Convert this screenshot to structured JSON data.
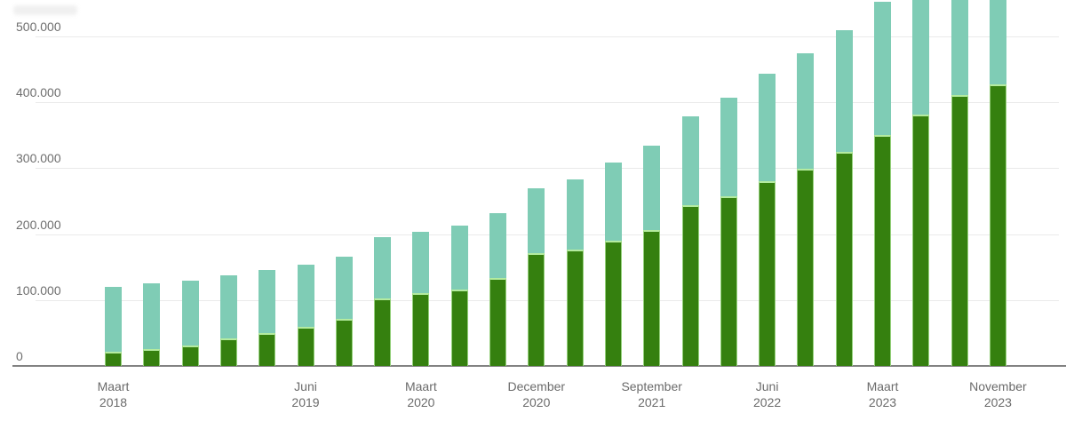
{
  "chart_data": {
    "type": "bar",
    "stacked": true,
    "orientation": "vertical",
    "bar_count": 24,
    "title": "",
    "xlabel": "",
    "ylabel": "",
    "grid": "horizontal",
    "legend": null,
    "cropped_top": true,
    "visible_y_max": 556000,
    "series": [
      {
        "name": "dark-green-bottom-segment",
        "color": "#35800f",
        "values": [
          22000,
          26000,
          31000,
          42000,
          50000,
          59000,
          72000,
          102000,
          111000,
          116000,
          134000,
          171000,
          176000,
          190000,
          206000,
          244000,
          258000,
          280000,
          299000,
          325000,
          350000,
          381000,
          411000,
          427000
        ]
      },
      {
        "name": "teal-top-segment",
        "color": "#7fccb5",
        "values": [
          98000,
          99000,
          98000,
          96000,
          95000,
          94000,
          94000,
          93000,
          93000,
          97000,
          98000,
          99000,
          107000,
          118000,
          128000,
          135000,
          149000,
          163000,
          175000,
          185000,
          203000,
          204000,
          204000,
          208000
        ]
      }
    ],
    "x_ticks": [
      {
        "bar_index": 0,
        "line1": "Maart",
        "line2": "2018"
      },
      {
        "bar_index": 5,
        "line1": "Juni",
        "line2": "2019"
      },
      {
        "bar_index": 8,
        "line1": "Maart",
        "line2": "2020"
      },
      {
        "bar_index": 11,
        "line1": "December",
        "line2": "2020"
      },
      {
        "bar_index": 14,
        "line1": "September",
        "line2": "2021"
      },
      {
        "bar_index": 17,
        "line1": "Juni",
        "line2": "2022"
      },
      {
        "bar_index": 20,
        "line1": "Maart",
        "line2": "2023"
      },
      {
        "bar_index": 23,
        "line1": "November",
        "line2": "2023"
      }
    ],
    "y_ticks": [
      {
        "value": 0,
        "label": "0"
      },
      {
        "value": 100000,
        "label": "100.000"
      },
      {
        "value": 200000,
        "label": "200.000"
      },
      {
        "value": 300000,
        "label": "300.000"
      },
      {
        "value": 400000,
        "label": "400.000"
      },
      {
        "value": 500000,
        "label": "500.000"
      }
    ],
    "colors": {
      "dark_green": "#35800f",
      "teal": "#7fccb5",
      "segment_separator": "#b4eb9f",
      "gridline": "#eaeaea",
      "axis_line": "#828282",
      "tick_label": "#6e6e6e"
    }
  }
}
